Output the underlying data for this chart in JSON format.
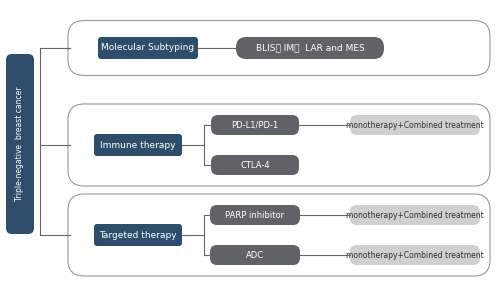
{
  "bg_color": "#ffffff",
  "dark_blue": "#2e4d6b",
  "dark_gray": "#5f6368",
  "light_gray_outcome": "#d0d0d0",
  "outer_ec": "#999999",
  "left_label": "Triple-negative  breast cancer",
  "mol_label": "Molecular Subtyping",
  "mol_child": "BLIS， IM，  LAR and MES",
  "immune_label": "Immune therapy",
  "immune_children": [
    "PD-L1/PD-1",
    "CTLA-4"
  ],
  "immune_outcome": "monotherapy+Combined treatment",
  "targeted_label": "Targeted therapy",
  "targeted_children": [
    "PARP inhibitor",
    "ADC"
  ],
  "targeted_outcomes": [
    "monotherapy+Combined treatment",
    "monotherapy+Combined treatment"
  ],
  "line_color": "#666666"
}
